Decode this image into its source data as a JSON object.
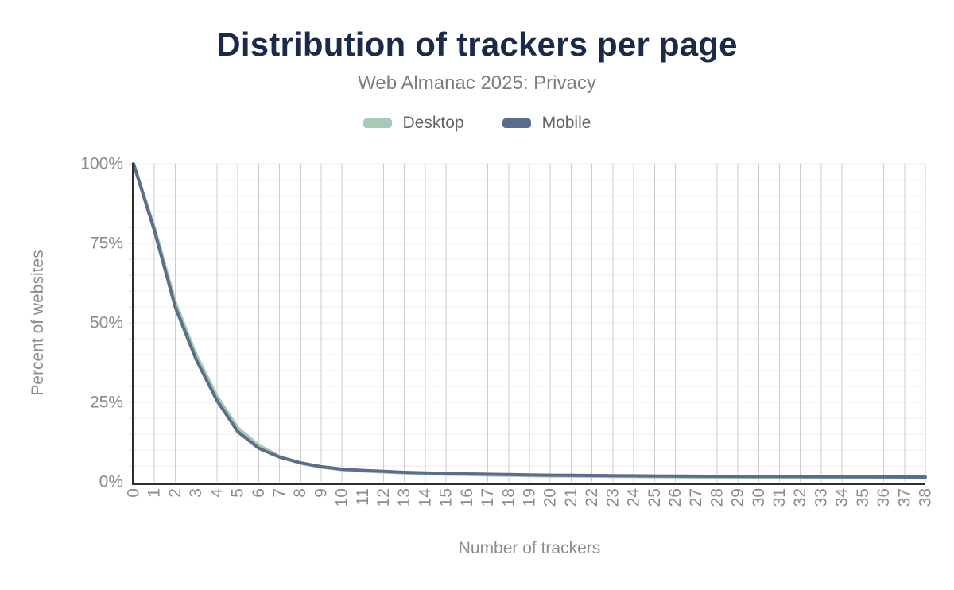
{
  "chart_data": {
    "type": "line",
    "title": "Distribution of trackers per page",
    "subtitle": "Web Almanac 2025: Privacy",
    "xlabel": "Number of trackers",
    "ylabel": "Percent of websites",
    "legend_position": "top",
    "x": [
      0,
      1,
      2,
      3,
      4,
      5,
      6,
      7,
      8,
      9,
      10,
      11,
      12,
      13,
      14,
      15,
      16,
      17,
      18,
      19,
      20,
      21,
      22,
      23,
      24,
      25,
      26,
      27,
      28,
      29,
      30,
      31,
      32,
      33,
      34,
      35,
      36,
      37,
      38
    ],
    "xlim": [
      0,
      38
    ],
    "ylim": [
      0,
      100
    ],
    "yticks": [
      0,
      25,
      50,
      75,
      100
    ],
    "ytick_labels": [
      "0%",
      "25%",
      "50%",
      "75%",
      "100%"
    ],
    "grid": {
      "vertical": true,
      "horizontal_step": 5
    },
    "series": [
      {
        "name": "Desktop",
        "color": "#a8c9b5",
        "values": [
          100,
          80,
          56.5,
          40,
          27,
          17,
          11.5,
          8,
          5.9,
          4.6,
          3.8,
          3.4,
          3.1,
          2.8,
          2.6,
          2.4,
          2.3,
          2.15,
          2.05,
          1.95,
          1.85,
          1.8,
          1.75,
          1.7,
          1.65,
          1.6,
          1.55,
          1.5,
          1.48,
          1.45,
          1.42,
          1.4,
          1.38,
          1.35,
          1.32,
          1.3,
          1.28,
          1.25,
          1.22
        ]
      },
      {
        "name": "Mobile",
        "color": "#5a6e8c",
        "values": [
          100,
          79,
          55,
          38.5,
          25.6,
          15.8,
          10.6,
          7.8,
          6,
          4.8,
          4,
          3.6,
          3.3,
          3,
          2.8,
          2.65,
          2.5,
          2.4,
          2.3,
          2.2,
          2.1,
          2.05,
          2,
          1.95,
          1.9,
          1.85,
          1.8,
          1.78,
          1.75,
          1.72,
          1.7,
          1.68,
          1.65,
          1.62,
          1.6,
          1.58,
          1.55,
          1.52,
          1.5
        ]
      }
    ]
  },
  "colors": {
    "background": "#ffffff",
    "title": "#1c2a4a",
    "subtitle": "#7e7e7e",
    "legend_text": "#666666",
    "axis_text": "#8c8c8c",
    "grid_vertical": "#cccccc",
    "grid_horizontal": "#ececec",
    "axis_tick": "#e0e0e0",
    "axis_line": "#2e2e2e"
  }
}
